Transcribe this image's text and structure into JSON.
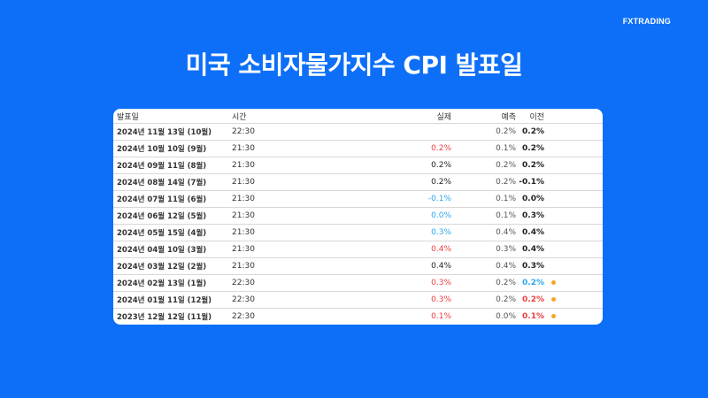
{
  "brand": "FXTRADING",
  "title": "미국 소비자물가지수 CPI 발표일",
  "colors": {
    "background": "#0d6ff7",
    "red": "#f03e3e",
    "blue": "#2aa7ee",
    "dot": "#f5a623"
  },
  "table": {
    "headers": {
      "date": "발표일",
      "time": "시간",
      "actual": "실제",
      "forecast": "예측",
      "previous": "이전"
    },
    "rows": [
      {
        "date": "2024년 11월 13일 (10월)",
        "time": "22:30",
        "actual": "",
        "actual_color": "dark",
        "forecast": "0.2%",
        "previous": "0.2%",
        "previous_color": "dark",
        "dot": false
      },
      {
        "date": "2024년 10월 10일 (9월)",
        "time": "21:30",
        "actual": "0.2%",
        "actual_color": "red",
        "forecast": "0.1%",
        "previous": "0.2%",
        "previous_color": "dark",
        "dot": false
      },
      {
        "date": "2024년 09월 11일 (8월)",
        "time": "21:30",
        "actual": "0.2%",
        "actual_color": "dark",
        "forecast": "0.2%",
        "previous": "0.2%",
        "previous_color": "dark",
        "dot": false
      },
      {
        "date": "2024년 08월 14일 (7월)",
        "time": "21:30",
        "actual": "0.2%",
        "actual_color": "dark",
        "forecast": "0.2%",
        "previous": "-0.1%",
        "previous_color": "dark",
        "dot": false
      },
      {
        "date": "2024년 07월 11일 (6월)",
        "time": "21:30",
        "actual": "-0.1%",
        "actual_color": "blue",
        "forecast": "0.1%",
        "previous": "0.0%",
        "previous_color": "dark",
        "dot": false
      },
      {
        "date": "2024년 06월 12일 (5월)",
        "time": "21:30",
        "actual": "0.0%",
        "actual_color": "blue",
        "forecast": "0.1%",
        "previous": "0.3%",
        "previous_color": "dark",
        "dot": false
      },
      {
        "date": "2024년 05월 15일 (4월)",
        "time": "21:30",
        "actual": "0.3%",
        "actual_color": "blue",
        "forecast": "0.4%",
        "previous": "0.4%",
        "previous_color": "dark",
        "dot": false
      },
      {
        "date": "2024년 04월 10일 (3월)",
        "time": "21:30",
        "actual": "0.4%",
        "actual_color": "red",
        "forecast": "0.3%",
        "previous": "0.4%",
        "previous_color": "dark",
        "dot": false
      },
      {
        "date": "2024년 03월 12일 (2월)",
        "time": "21:30",
        "actual": "0.4%",
        "actual_color": "dark",
        "forecast": "0.4%",
        "previous": "0.3%",
        "previous_color": "dark",
        "dot": false
      },
      {
        "date": "2024년 02월 13일 (1월)",
        "time": "22:30",
        "actual": "0.3%",
        "actual_color": "red",
        "forecast": "0.2%",
        "previous": "0.2%",
        "previous_color": "blue",
        "dot": true
      },
      {
        "date": "2024년 01월 11일 (12월)",
        "time": "22:30",
        "actual": "0.3%",
        "actual_color": "red",
        "forecast": "0.2%",
        "previous": "0.2%",
        "previous_color": "red",
        "dot": true
      },
      {
        "date": "2023년 12월 12일 (11월)",
        "time": "22:30",
        "actual": "0.1%",
        "actual_color": "red",
        "forecast": "0.0%",
        "previous": "0.1%",
        "previous_color": "red",
        "dot": true
      }
    ]
  }
}
